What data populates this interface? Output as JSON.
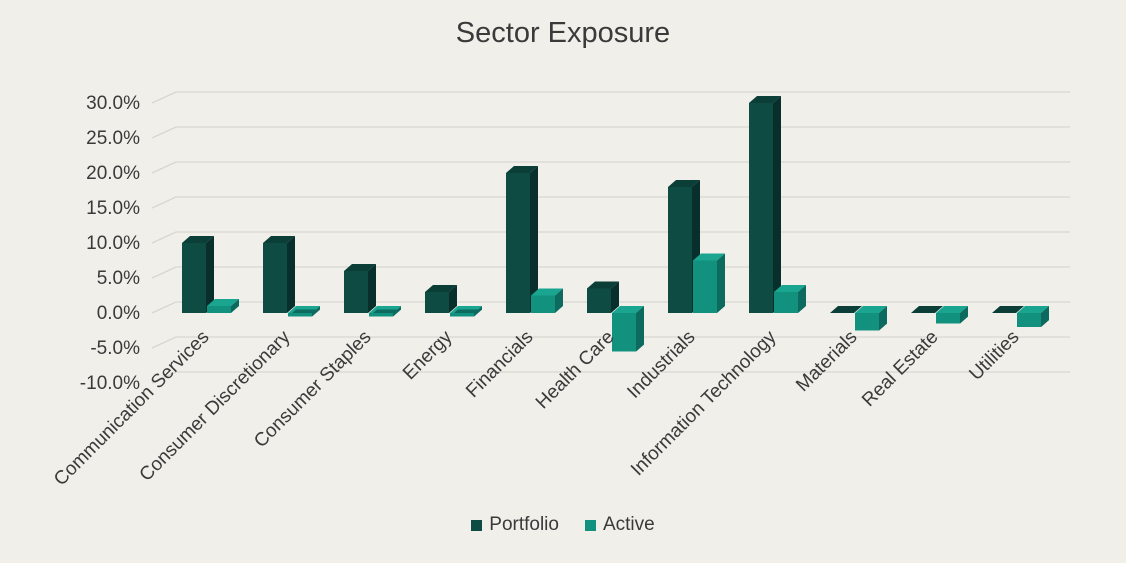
{
  "title": "Sector Exposure",
  "colors": {
    "background": "#F0EFEA",
    "gridline": "#D8D6D1",
    "text": "#3A3A3A",
    "portfolio": {
      "front": "#0E4B43",
      "top": "#0C3E38",
      "side": "#082F2B"
    },
    "active": {
      "front": "#12917F",
      "top": "#1AA591",
      "side": "#0C6B5E"
    }
  },
  "legend": {
    "items": [
      {
        "label": "Portfolio",
        "key": "portfolio"
      },
      {
        "label": "Active",
        "key": "active"
      }
    ]
  },
  "chart_data": {
    "type": "bar",
    "variant": "3d-column",
    "title": "Sector Exposure",
    "categories": [
      "Communication Services",
      "Consumer Discretionary",
      "Consumer Staples",
      "Energy",
      "Financials",
      "Health Care",
      "Industrials",
      "Information Technology",
      "Materials",
      "Real Estate",
      "Utilities"
    ],
    "series": [
      {
        "name": "Portfolio",
        "key": "portfolio",
        "values": [
          10.0,
          10.0,
          6.0,
          3.0,
          20.0,
          3.5,
          18.0,
          30.0,
          0.0,
          0.0,
          0.0
        ]
      },
      {
        "name": "Active",
        "key": "active",
        "values": [
          1.0,
          -0.5,
          -0.5,
          -0.5,
          2.5,
          -5.5,
          7.5,
          3.0,
          -2.5,
          -1.5,
          -2.0
        ]
      }
    ],
    "xlabel": "",
    "ylabel": "",
    "yticks": [
      30,
      25,
      20,
      15,
      10,
      5,
      0,
      -5,
      -10
    ],
    "ylim": [
      -10,
      30
    ],
    "ytick_format": "0.0%",
    "grid": true,
    "legend_position": "bottom"
  }
}
